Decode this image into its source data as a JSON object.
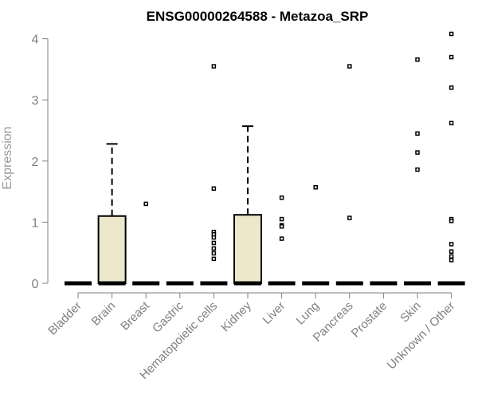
{
  "chart_data": {
    "type": "box",
    "title": "ENSG00000264588 - Metazoa_SRP",
    "xlabel": "",
    "ylabel": "Expression",
    "ylim": [
      0,
      4.1
    ],
    "yticks": [
      "0",
      "1",
      "2",
      "3",
      "4"
    ],
    "categories": [
      "Bladder",
      "Brain",
      "Breast",
      "Gastric",
      "Hematopoietic cells",
      "Kidney",
      "Liver",
      "Lung",
      "Pancreas",
      "Prostate",
      "Skin",
      "Unknown / Other"
    ],
    "boxes": [
      {
        "q1": 0,
        "median": 0,
        "q3": 0,
        "whisker_high": 0,
        "outliers": []
      },
      {
        "q1": 0,
        "median": 0,
        "q3": 1.1,
        "whisker_high": 2.28,
        "outliers": []
      },
      {
        "q1": 0,
        "median": 0,
        "q3": 0,
        "whisker_high": 0,
        "outliers": [
          1.3
        ]
      },
      {
        "q1": 0,
        "median": 0,
        "q3": 0,
        "whisker_high": 0,
        "outliers": []
      },
      {
        "q1": 0,
        "median": 0,
        "q3": 0,
        "whisker_high": 0,
        "outliers": [
          3.55,
          1.55,
          0.84,
          0.8,
          0.75,
          0.66,
          0.57,
          0.49,
          0.4
        ]
      },
      {
        "q1": 0,
        "median": 0,
        "q3": 1.12,
        "whisker_high": 2.57,
        "outliers": []
      },
      {
        "q1": 0,
        "median": 0,
        "q3": 0,
        "whisker_high": 0,
        "outliers": [
          1.4,
          1.05,
          0.95,
          0.93,
          0.73
        ]
      },
      {
        "q1": 0,
        "median": 0,
        "q3": 0,
        "whisker_high": 0,
        "outliers": [
          1.57
        ]
      },
      {
        "q1": 0,
        "median": 0,
        "q3": 0,
        "whisker_high": 0,
        "outliers": [
          3.55,
          1.07
        ]
      },
      {
        "q1": 0,
        "median": 0,
        "q3": 0,
        "whisker_high": 0,
        "outliers": []
      },
      {
        "q1": 0,
        "median": 0,
        "q3": 0,
        "whisker_high": 0,
        "outliers": [
          3.66,
          2.45,
          2.14,
          1.86
        ]
      },
      {
        "q1": 0,
        "median": 0,
        "q3": 0,
        "whisker_high": 0,
        "outliers": [
          4.08,
          3.7,
          3.2,
          2.62,
          1.05,
          1.02,
          0.64,
          0.52,
          0.44,
          0.38
        ]
      }
    ],
    "colors": {
      "box_fill": "#ede7cc",
      "stroke": "#000000",
      "axis": "#7f7f7f",
      "ylabel": "#9a9a9a"
    },
    "grid": false,
    "legend": "none"
  }
}
